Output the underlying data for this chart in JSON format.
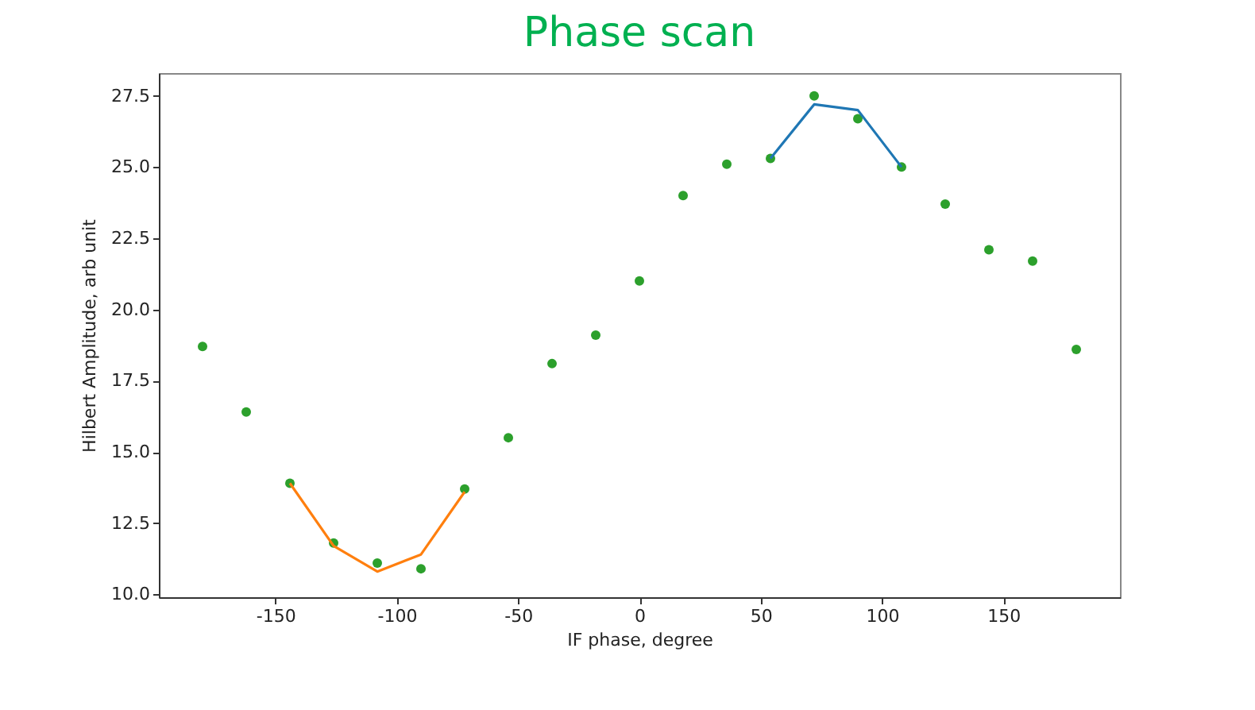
{
  "chart_data": {
    "type": "scatter",
    "title": "Phase scan",
    "xlabel": "IF phase, degree",
    "ylabel": "Hilbert Amplitude, arb unit",
    "xlim": [
      -198,
      198
    ],
    "ylim": [
      9.9,
      28.3
    ],
    "xticks": [
      -150,
      -100,
      -50,
      0,
      50,
      100,
      150
    ],
    "yticks": [
      {
        "value": 10,
        "label": "10.0"
      },
      12.5,
      {
        "value": 15,
        "label": "15.0"
      },
      17.5,
      {
        "value": 20,
        "label": "20.0"
      },
      22.5,
      {
        "value": 25,
        "label": "25.0"
      },
      27.5
    ],
    "grid": false,
    "series": [
      {
        "color": "#2ca02c",
        "x": [
          -180,
          -162,
          -144,
          -126,
          -108,
          -90,
          -72,
          -54,
          -36,
          -18,
          0,
          18,
          36,
          54,
          72,
          90,
          108,
          126,
          144,
          162,
          180
        ],
        "values": [
          18.7,
          16.4,
          13.9,
          11.8,
          11.1,
          10.9,
          13.7,
          15.5,
          18.1,
          19.1,
          21.0,
          24.0,
          25.1,
          25.3,
          27.5,
          26.7,
          25.0,
          23.7,
          22.1,
          21.7,
          18.6
        ]
      },
      {
        "type": "line",
        "color": "#ff7f0e",
        "x": [
          -144,
          -126,
          -108,
          -90,
          -72
        ],
        "values": [
          13.9,
          11.7,
          10.8,
          11.4,
          13.6
        ]
      },
      {
        "type": "line",
        "color": "#1f77b4",
        "x": [
          54,
          72,
          90,
          108
        ],
        "values": [
          25.3,
          27.2,
          27.0,
          25.0
        ]
      }
    ]
  }
}
